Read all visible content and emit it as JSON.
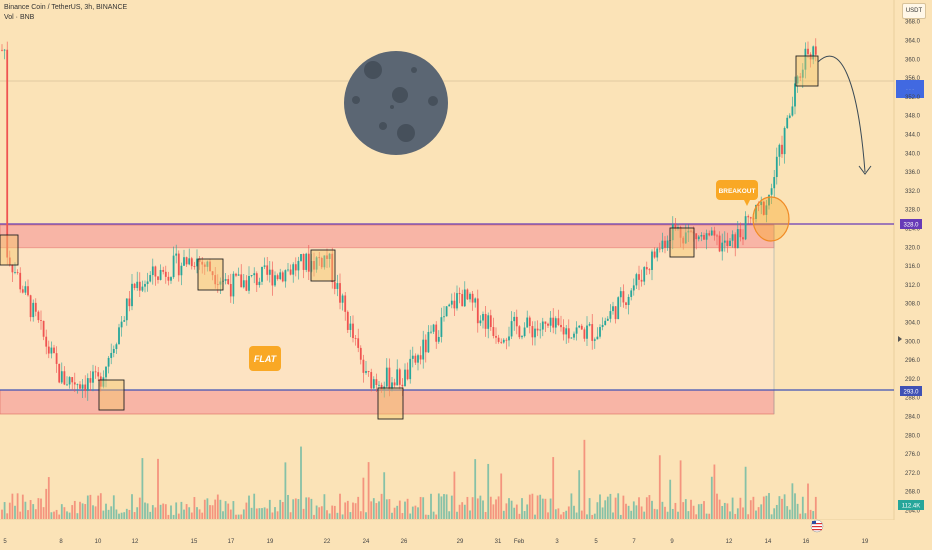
{
  "header": {
    "symbol_title": "Binance Coin / TetherUS, 3h, BINANCE",
    "volume_label": "Vol · BNB"
  },
  "toolbar": {
    "currency_button": "USDT"
  },
  "annotations": {
    "flat_label": "FLAT",
    "breakout_label": "BREAKOUT"
  },
  "price_axis": {
    "ticks": [
      "368.0",
      "364.0",
      "360.0",
      "356.0",
      "352.0",
      "348.0",
      "344.0",
      "340.0",
      "336.0",
      "332.0",
      "328.0",
      "324.0",
      "320.0",
      "316.0",
      "312.0",
      "308.0",
      "304.0",
      "300.0",
      "296.0",
      "292.0",
      "288.0",
      "284.0",
      "280.0",
      "276.0",
      "272.0",
      "268.0",
      "264.0"
    ],
    "resistance_badge": "328.0",
    "support_badge": "293.0",
    "volume_badge": "112.4K"
  },
  "time_axis": {
    "labels": [
      "5",
      "8",
      "10",
      "12",
      "15",
      "17",
      "19",
      "22",
      "24",
      "26",
      "29",
      "31",
      "Feb",
      "3",
      "5",
      "7",
      "9",
      "12",
      "14",
      "16",
      "19"
    ]
  },
  "colors": {
    "background": "#fbe3b7",
    "up_candle": "#26a69a",
    "down_candle": "#ef5350",
    "resistance_line": "#673ab7",
    "support_line": "#3f51b5",
    "zone_fill": "#f7a6a0",
    "label_orange": "#f9a825"
  },
  "chart_data": {
    "type": "candlestick",
    "title": "Binance Coin / TetherUS, 3h, BINANCE",
    "ylim": [
      262,
      370
    ],
    "resistance": 328.0,
    "support": 293.0,
    "resistance_zone": [
      323,
      329
    ],
    "support_zone": [
      288,
      294
    ],
    "range_start_date": "5",
    "range_end_date": "14",
    "keypoints": [
      {
        "x": "5",
        "price": 320
      },
      {
        "x": "8",
        "price": 292
      },
      {
        "x": "10",
        "price": 291
      },
      {
        "x": "12",
        "price": 312
      },
      {
        "x": "15",
        "price": 318
      },
      {
        "x": "17",
        "price": 312
      },
      {
        "x": "19",
        "price": 314
      },
      {
        "x": "22",
        "price": 318
      },
      {
        "x": "24",
        "price": 292
      },
      {
        "x": "26",
        "price": 292
      },
      {
        "x": "29",
        "price": 310
      },
      {
        "x": "31",
        "price": 302
      },
      {
        "x": "Feb",
        "price": 303
      },
      {
        "x": "5",
        "price": 302
      },
      {
        "x": "7",
        "price": 312
      },
      {
        "x": "9",
        "price": 324
      },
      {
        "x": "12",
        "price": 320
      },
      {
        "x": "14",
        "price": 330
      },
      {
        "x": "16",
        "price": 362
      }
    ]
  }
}
